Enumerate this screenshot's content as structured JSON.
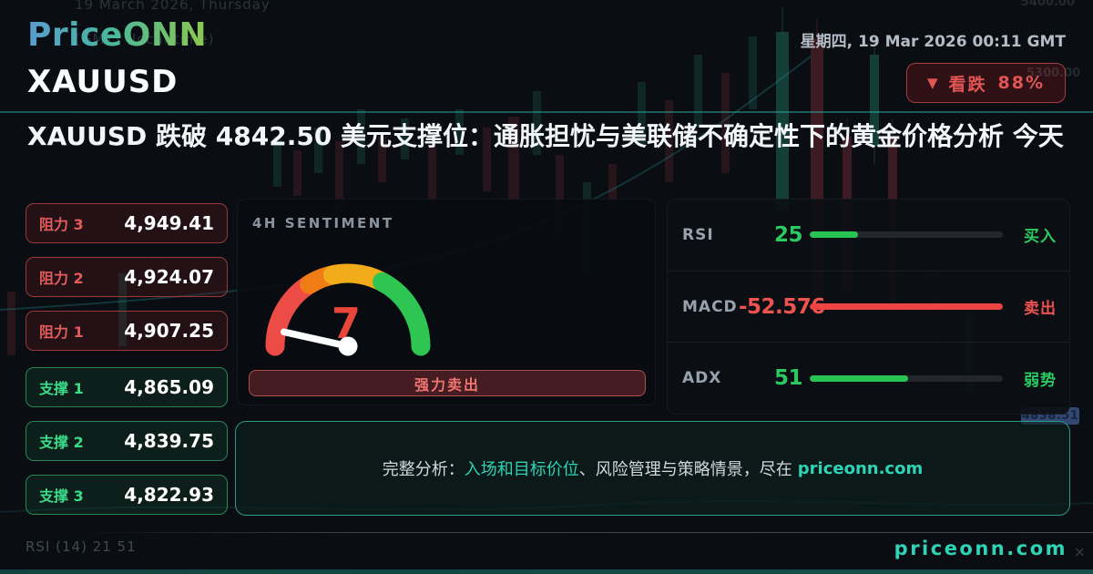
{
  "header": {
    "logo": "PriceONN",
    "symbol": "XAUUSD",
    "datetime": "星期四, 19 Mar 2026 00:11 GMT",
    "badge": {
      "icon": "▼",
      "text": "看跌",
      "percent": "88%"
    }
  },
  "headline": "XAUUSD 跌破 4842.50 美元支撑位：通胀担忧与美联储不确定性下的黄金价格分析 今天",
  "levels": {
    "resistance": [
      {
        "label": "阻力 3",
        "value": "4,949.41"
      },
      {
        "label": "阻力 2",
        "value": "4,924.07"
      },
      {
        "label": "阻力 1",
        "value": "4,907.25"
      }
    ],
    "support": [
      {
        "label": "支撑 1",
        "value": "4,865.09"
      },
      {
        "label": "支撑 2",
        "value": "4,839.75"
      },
      {
        "label": "支撑 3",
        "value": "4,822.93"
      }
    ]
  },
  "sentiment": {
    "title": "4H SENTIMENT",
    "value": 7,
    "max": 100,
    "action_label": "强力卖出"
  },
  "indicators": [
    {
      "name": "RSI",
      "value": "25",
      "percent": 25,
      "signal": "买入",
      "color": "green"
    },
    {
      "name": "MACD",
      "value": "-52.576",
      "percent": 100,
      "signal": "卖出",
      "color": "red"
    },
    {
      "name": "ADX",
      "value": "51",
      "percent": 51,
      "signal": "弱势",
      "color": "green"
    }
  ],
  "banner": {
    "prefix": "完整分析：",
    "highlight": "入场和目标价位",
    "middle": "、风险管理与策略情景，尽在",
    "site": "priceonn.com"
  },
  "footer": {
    "site": "priceonn.com",
    "left_faint": "RSI (14) 21 51",
    "close_icon": "×"
  },
  "background_faint": {
    "top_line1": "19 March 2026, Thursday",
    "top_line2": "(GMT) (local time)",
    "axis_label_top": "5400.00",
    "axis_label_mid": "5300.00",
    "price_tag": "4838.51"
  },
  "colors": {
    "bearish_red": "#e25555",
    "bullish_green": "#2bc961",
    "accent_teal": "#2fd3b5",
    "gauge": [
      "#ed4b45",
      "#f07c15",
      "#f2ab19",
      "#2fc553"
    ]
  }
}
